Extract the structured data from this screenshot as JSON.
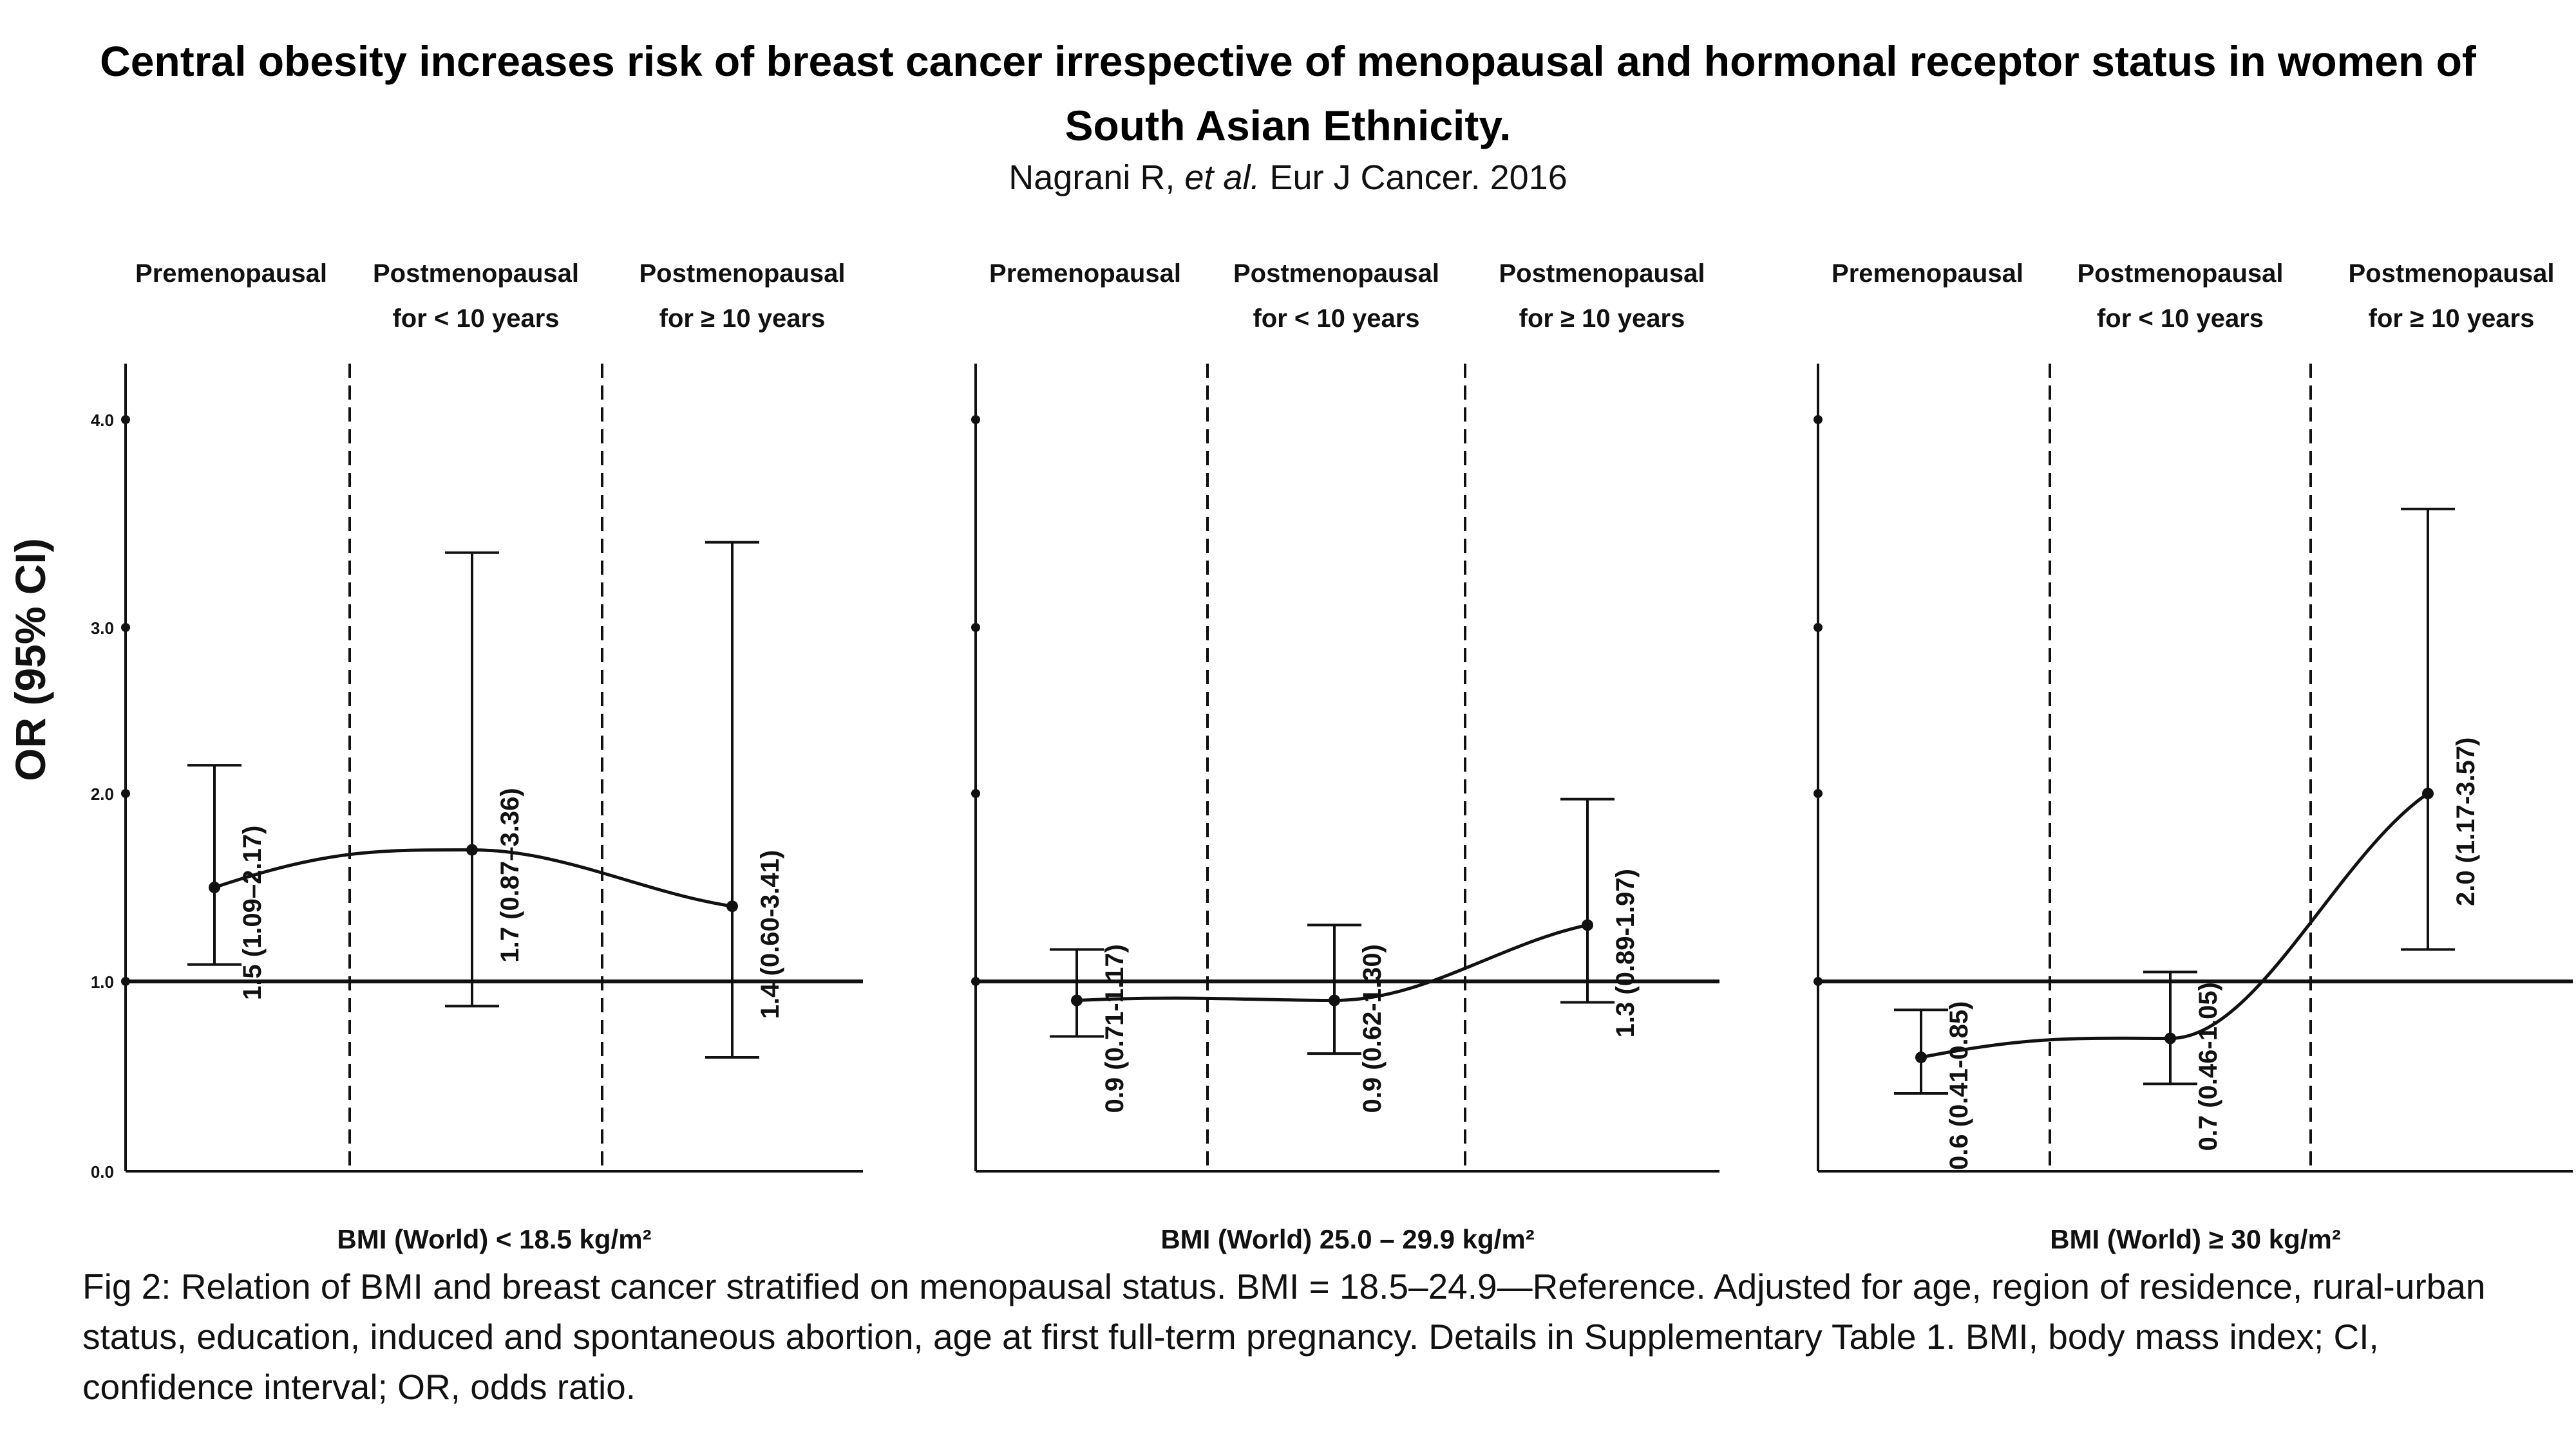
{
  "title": "Central obesity increases risk of breast cancer irrespective of menopausal and hormonal receptor status in women of South Asian Ethnicity.",
  "citation": {
    "authors": "Nagrani R,",
    "etal": "et al.",
    "journal": "Eur J Cancer. 2016"
  },
  "caption": "Fig 2: Relation of BMI and breast cancer stratified on menopausal status. BMI = 18.5–24.9—Reference. Adjusted for age, region of residence, rural-urban status, education, induced and spontaneous abortion, age at first full-term pregnancy. Details in Supplementary Table 1. BMI, body mass index; CI, confidence interval; OR, odds ratio.",
  "colors": {
    "ink": "#111111",
    "background": "#ffffff"
  },
  "chart_data": [
    {
      "type": "scatter",
      "title": "",
      "xlabel": "BMI (World) < 18.5 kg/m²",
      "ylabel": "OR (95% CI)",
      "ylim": [
        0,
        4.0
      ],
      "y_ticks": [
        "0.0",
        "1.0",
        "2.0",
        "3.0",
        "4.0"
      ],
      "reference_line": 1.0,
      "groups": [
        {
          "header_line1": "Premenopausal",
          "header_line2": ""
        },
        {
          "header_line1": "Postmenopausal",
          "header_line2": "for < 10 years"
        },
        {
          "header_line1": "Postmenopausal",
          "header_line2": "for ≥ 10 years"
        }
      ],
      "points": [
        {
          "or": 1.5,
          "lower": 1.09,
          "upper": 2.17,
          "label": "1.5 (1.09–2.17)"
        },
        {
          "or": 1.7,
          "lower": 0.87,
          "upper": 3.36,
          "label": "1.7 (0.87–3.36)"
        },
        {
          "or": 1.4,
          "lower": 0.6,
          "upper": 3.41,
          "label": "1.4 (0.60-3.41)"
        }
      ]
    },
    {
      "type": "scatter",
      "title": "",
      "xlabel": "BMI (World) 25.0 – 29.9 kg/m²",
      "ylabel": "",
      "ylim": [
        0,
        4.0
      ],
      "reference_line": 1.0,
      "groups": [
        {
          "header_line1": "Premenopausal",
          "header_line2": ""
        },
        {
          "header_line1": "Postmenopausal",
          "header_line2": "for < 10 years"
        },
        {
          "header_line1": "Postmenopausal",
          "header_line2": "for ≥ 10 years"
        }
      ],
      "points": [
        {
          "or": 0.9,
          "lower": 0.71,
          "upper": 1.17,
          "label": "0.9 (0.71-1.17)"
        },
        {
          "or": 0.9,
          "lower": 0.62,
          "upper": 1.3,
          "label": "0.9 (0.62-1.30)"
        },
        {
          "or": 1.3,
          "lower": 0.89,
          "upper": 1.97,
          "label": "1.3 (0.89-1.97)"
        }
      ]
    },
    {
      "type": "scatter",
      "title": "",
      "xlabel": "BMI (World) ≥ 30 kg/m²",
      "ylabel": "",
      "ylim": [
        0,
        4.0
      ],
      "reference_line": 1.0,
      "groups": [
        {
          "header_line1": "Premenopausal",
          "header_line2": ""
        },
        {
          "header_line1": "Postmenopausal",
          "header_line2": "for < 10 years"
        },
        {
          "header_line1": "Postmenopausal",
          "header_line2": "for ≥ 10 years"
        }
      ],
      "points": [
        {
          "or": 0.6,
          "lower": 0.41,
          "upper": 0.85,
          "label": "0.6 (0.41-0.85)"
        },
        {
          "or": 0.7,
          "lower": 0.46,
          "upper": 1.05,
          "label": "0.7 (0.46-1.05)"
        },
        {
          "or": 2.0,
          "lower": 1.17,
          "upper": 3.57,
          "label": "2.0 (1.17-3.57)"
        }
      ]
    }
  ]
}
